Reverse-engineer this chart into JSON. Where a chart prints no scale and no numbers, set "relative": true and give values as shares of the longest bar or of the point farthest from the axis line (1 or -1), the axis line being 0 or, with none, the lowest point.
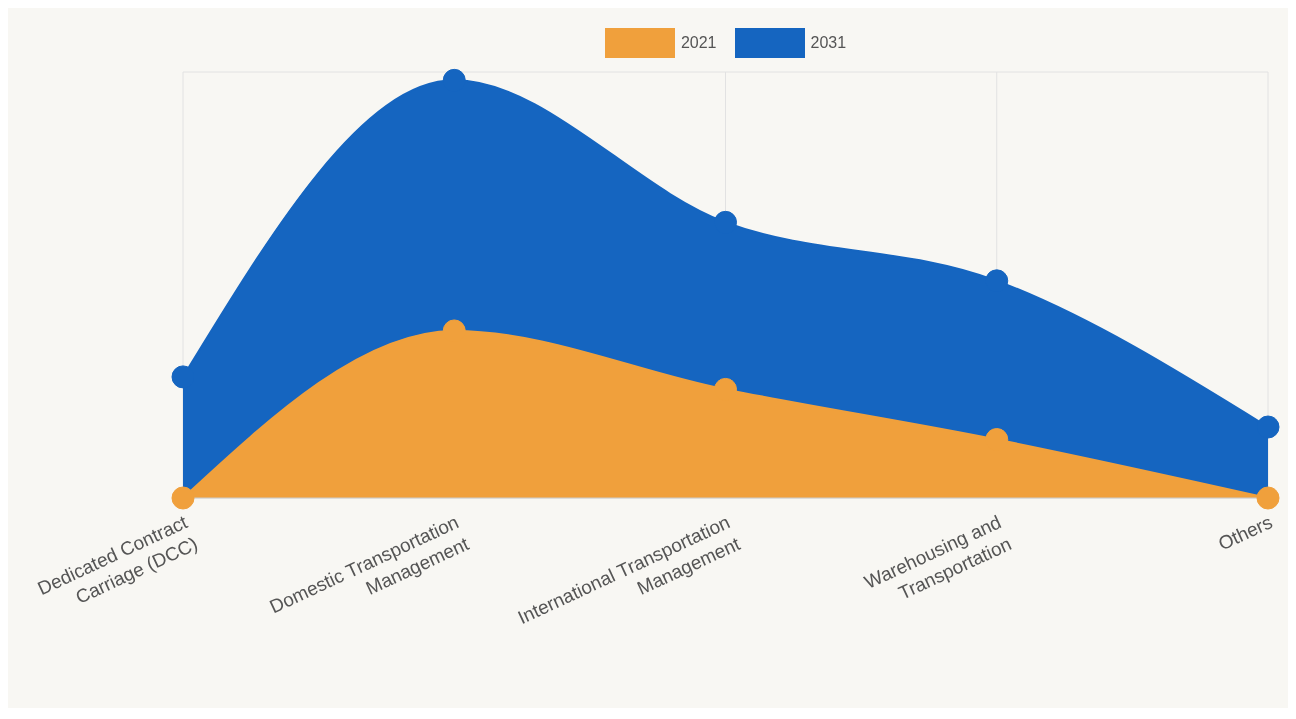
{
  "chart_data": {
    "type": "area",
    "relative": true,
    "categories": [
      "Dedicated Contract Carriage (DCC)",
      "Domestic Transportation Management",
      "International Transportation Management",
      "Warehousing and Transportation",
      "Others"
    ],
    "series": [
      {
        "name": "2021",
        "color": "#f0a03c",
        "values": [
          0,
          0.4,
          0.26,
          0.14,
          0
        ]
      },
      {
        "name": "2031",
        "color": "#1565c0",
        "values": [
          0.29,
          1,
          0.66,
          0.52,
          0.17
        ]
      }
    ],
    "grid": true,
    "legend": "top",
    "marker": "circle"
  }
}
